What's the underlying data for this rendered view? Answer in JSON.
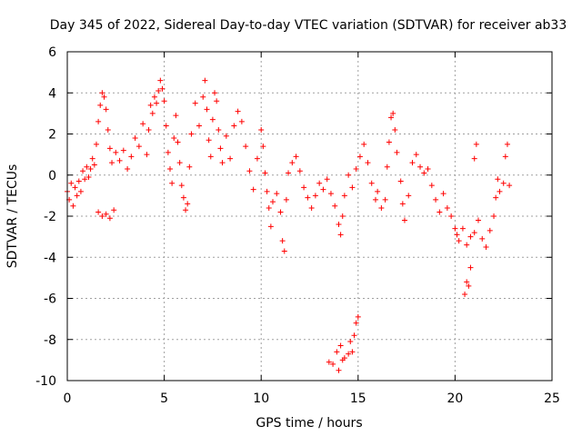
{
  "chart_data": {
    "type": "scatter",
    "title": "Day 345 of 2022, Sidereal Day-to-day VTEC variation (SDTVAR) for receiver ab33",
    "xlabel": "GPS time / hours",
    "ylabel": "SDTVAR / TECUs",
    "xlim": [
      0,
      25
    ],
    "ylim": [
      -10,
      6
    ],
    "x_ticks": [
      0,
      5,
      10,
      15,
      20,
      25
    ],
    "y_ticks": [
      -10,
      -8,
      -6,
      -4,
      -2,
      0,
      2,
      4,
      6
    ],
    "grid": true,
    "marker": "+",
    "marker_color": "#ff0000",
    "series": [
      {
        "name": "SDTVAR",
        "points": [
          [
            0.0,
            -0.8
          ],
          [
            0.1,
            -1.2
          ],
          [
            0.2,
            -0.4
          ],
          [
            0.3,
            -1.5
          ],
          [
            0.4,
            -0.6
          ],
          [
            0.5,
            -1.0
          ],
          [
            0.6,
            -0.3
          ],
          [
            0.7,
            -0.8
          ],
          [
            0.8,
            0.2
          ],
          [
            0.9,
            -0.2
          ],
          [
            1.0,
            0.4
          ],
          [
            1.1,
            -0.1
          ],
          [
            1.2,
            0.3
          ],
          [
            1.3,
            0.8
          ],
          [
            1.4,
            0.5
          ],
          [
            1.5,
            1.5
          ],
          [
            1.6,
            2.6
          ],
          [
            1.7,
            3.4
          ],
          [
            1.8,
            4.0
          ],
          [
            1.9,
            3.8
          ],
          [
            2.0,
            3.2
          ],
          [
            2.1,
            2.2
          ],
          [
            2.2,
            1.3
          ],
          [
            2.3,
            0.6
          ],
          [
            1.6,
            -1.8
          ],
          [
            1.8,
            -2.0
          ],
          [
            2.0,
            -1.9
          ],
          [
            2.2,
            -2.1
          ],
          [
            2.4,
            -1.7
          ],
          [
            2.5,
            1.1
          ],
          [
            2.7,
            0.7
          ],
          [
            2.9,
            1.2
          ],
          [
            3.1,
            0.3
          ],
          [
            3.3,
            0.9
          ],
          [
            3.5,
            1.8
          ],
          [
            3.7,
            1.4
          ],
          [
            3.9,
            2.5
          ],
          [
            4.1,
            1.0
          ],
          [
            4.2,
            2.2
          ],
          [
            4.3,
            3.4
          ],
          [
            4.4,
            3.0
          ],
          [
            4.5,
            3.8
          ],
          [
            4.6,
            3.5
          ],
          [
            4.7,
            4.1
          ],
          [
            4.8,
            4.6
          ],
          [
            4.9,
            4.2
          ],
          [
            5.0,
            3.6
          ],
          [
            5.1,
            2.4
          ],
          [
            5.2,
            1.1
          ],
          [
            5.3,
            0.3
          ],
          [
            5.4,
            -0.4
          ],
          [
            5.5,
            1.8
          ],
          [
            5.6,
            2.9
          ],
          [
            5.7,
            1.6
          ],
          [
            5.8,
            0.6
          ],
          [
            5.9,
            -0.5
          ],
          [
            6.0,
            -1.1
          ],
          [
            6.1,
            -1.7
          ],
          [
            6.2,
            -1.4
          ],
          [
            6.3,
            0.4
          ],
          [
            6.4,
            2.0
          ],
          [
            6.6,
            3.5
          ],
          [
            6.8,
            2.4
          ],
          [
            7.0,
            3.8
          ],
          [
            7.1,
            4.6
          ],
          [
            7.2,
            3.2
          ],
          [
            7.3,
            1.7
          ],
          [
            7.4,
            0.9
          ],
          [
            7.5,
            2.7
          ],
          [
            7.6,
            4.0
          ],
          [
            7.7,
            3.6
          ],
          [
            7.8,
            2.2
          ],
          [
            7.9,
            1.3
          ],
          [
            8.0,
            0.6
          ],
          [
            8.2,
            1.9
          ],
          [
            8.4,
            0.8
          ],
          [
            8.6,
            2.4
          ],
          [
            8.8,
            3.1
          ],
          [
            9.0,
            2.6
          ],
          [
            9.2,
            1.4
          ],
          [
            9.4,
            0.2
          ],
          [
            9.6,
            -0.7
          ],
          [
            9.8,
            0.8
          ],
          [
            10.0,
            2.2
          ],
          [
            10.1,
            1.4
          ],
          [
            10.2,
            0.1
          ],
          [
            10.3,
            -0.8
          ],
          [
            10.4,
            -1.6
          ],
          [
            10.5,
            -2.5
          ],
          [
            10.6,
            -1.3
          ],
          [
            10.8,
            -0.9
          ],
          [
            11.0,
            -1.8
          ],
          [
            11.1,
            -3.2
          ],
          [
            11.2,
            -3.7
          ],
          [
            11.3,
            -1.2
          ],
          [
            11.4,
            0.1
          ],
          [
            11.6,
            0.6
          ],
          [
            11.8,
            0.9
          ],
          [
            12.0,
            0.2
          ],
          [
            12.2,
            -0.6
          ],
          [
            12.4,
            -1.1
          ],
          [
            12.6,
            -1.6
          ],
          [
            12.8,
            -1.0
          ],
          [
            13.0,
            -0.4
          ],
          [
            13.2,
            -0.7
          ],
          [
            13.4,
            -0.2
          ],
          [
            13.6,
            -0.9
          ],
          [
            13.8,
            -1.5
          ],
          [
            14.0,
            -2.4
          ],
          [
            14.1,
            -2.9
          ],
          [
            14.2,
            -2.0
          ],
          [
            14.3,
            -1.0
          ],
          [
            14.5,
            0.0
          ],
          [
            14.7,
            -0.6
          ],
          [
            14.9,
            0.3
          ],
          [
            15.1,
            0.9
          ],
          [
            15.3,
            1.5
          ],
          [
            15.5,
            0.6
          ],
          [
            15.7,
            -0.4
          ],
          [
            15.9,
            -1.2
          ],
          [
            13.5,
            -9.1
          ],
          [
            13.7,
            -9.2
          ],
          [
            13.9,
            -8.6
          ],
          [
            14.0,
            -9.5
          ],
          [
            14.1,
            -8.3
          ],
          [
            14.2,
            -9.0
          ],
          [
            14.3,
            -8.9
          ],
          [
            14.5,
            -8.7
          ],
          [
            14.6,
            -8.1
          ],
          [
            14.7,
            -8.6
          ],
          [
            14.8,
            -7.8
          ],
          [
            14.9,
            -7.2
          ],
          [
            15.0,
            -6.9
          ],
          [
            16.0,
            -0.8
          ],
          [
            16.2,
            -1.6
          ],
          [
            16.4,
            -1.2
          ],
          [
            16.5,
            0.4
          ],
          [
            16.6,
            1.6
          ],
          [
            16.7,
            2.8
          ],
          [
            16.8,
            3.0
          ],
          [
            16.9,
            2.2
          ],
          [
            17.0,
            1.1
          ],
          [
            17.2,
            -0.3
          ],
          [
            17.3,
            -1.4
          ],
          [
            17.4,
            -2.2
          ],
          [
            17.6,
            -1.0
          ],
          [
            17.8,
            0.6
          ],
          [
            18.0,
            1.0
          ],
          [
            18.2,
            0.4
          ],
          [
            18.4,
            0.1
          ],
          [
            18.6,
            0.3
          ],
          [
            18.8,
            -0.5
          ],
          [
            19.0,
            -1.2
          ],
          [
            19.2,
            -1.8
          ],
          [
            19.4,
            -0.9
          ],
          [
            19.6,
            -1.6
          ],
          [
            19.8,
            -2.0
          ],
          [
            20.0,
            -2.6
          ],
          [
            20.1,
            -2.9
          ],
          [
            20.2,
            -3.2
          ],
          [
            20.4,
            -2.6
          ],
          [
            20.6,
            -3.4
          ],
          [
            20.8,
            -3.0
          ],
          [
            21.0,
            -2.8
          ],
          [
            21.2,
            -2.2
          ],
          [
            21.4,
            -3.1
          ],
          [
            21.6,
            -3.5
          ],
          [
            21.8,
            -2.7
          ],
          [
            22.0,
            -2.0
          ],
          [
            22.1,
            -1.1
          ],
          [
            22.2,
            -0.2
          ],
          [
            22.3,
            -0.8
          ],
          [
            22.5,
            -0.4
          ],
          [
            22.6,
            0.9
          ],
          [
            22.7,
            1.5
          ],
          [
            22.8,
            -0.5
          ],
          [
            21.0,
            0.8
          ],
          [
            21.1,
            1.5
          ],
          [
            20.8,
            -4.5
          ],
          [
            20.6,
            -5.2
          ],
          [
            20.5,
            -5.8
          ],
          [
            20.7,
            -5.4
          ]
        ]
      }
    ]
  }
}
